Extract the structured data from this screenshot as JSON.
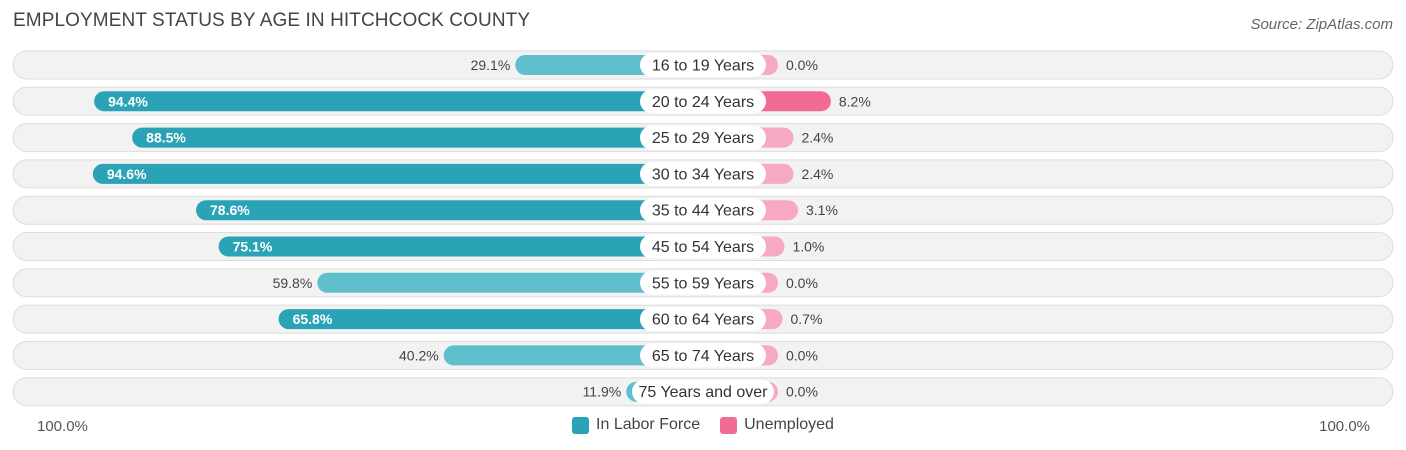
{
  "title": "EMPLOYMENT STATUS BY AGE IN HITCHCOCK COUNTY",
  "source": "Source: ZipAtlas.com",
  "axis": {
    "left_label": "100.0%",
    "right_label": "100.0%"
  },
  "legend": [
    {
      "label": "In Labor Force",
      "color": "#2aa3b7"
    },
    {
      "label": "Unemployed",
      "color": "#f26b95"
    }
  ],
  "colors": {
    "labor_strong": "#2aa3b7",
    "labor_light": "#5fbfcc",
    "unemp_strong": "#f26b95",
    "unemp_light": "#f6a9c1",
    "track": "#f2f2f2",
    "track_border": "#dddddd"
  },
  "chart_data": {
    "type": "bar",
    "orientation": "horizontal-diverging",
    "title": "EMPLOYMENT STATUS BY AGE IN HITCHCOCK COUNTY",
    "categories": [
      "16 to 19 Years",
      "20 to 24 Years",
      "25 to 29 Years",
      "30 to 34 Years",
      "35 to 44 Years",
      "45 to 54 Years",
      "55 to 59 Years",
      "60 to 64 Years",
      "65 to 74 Years",
      "75 Years and over"
    ],
    "series": [
      {
        "name": "In Labor Force",
        "side": "left",
        "values": [
          29.1,
          94.4,
          88.5,
          94.6,
          78.6,
          75.1,
          59.8,
          65.8,
          40.2,
          11.9
        ]
      },
      {
        "name": "Unemployed",
        "side": "right",
        "values": [
          0.0,
          8.2,
          2.4,
          2.4,
          3.1,
          1.0,
          0.0,
          0.7,
          0.0,
          0.0
        ]
      }
    ],
    "xlim": [
      -100,
      100
    ],
    "unit": "%"
  }
}
